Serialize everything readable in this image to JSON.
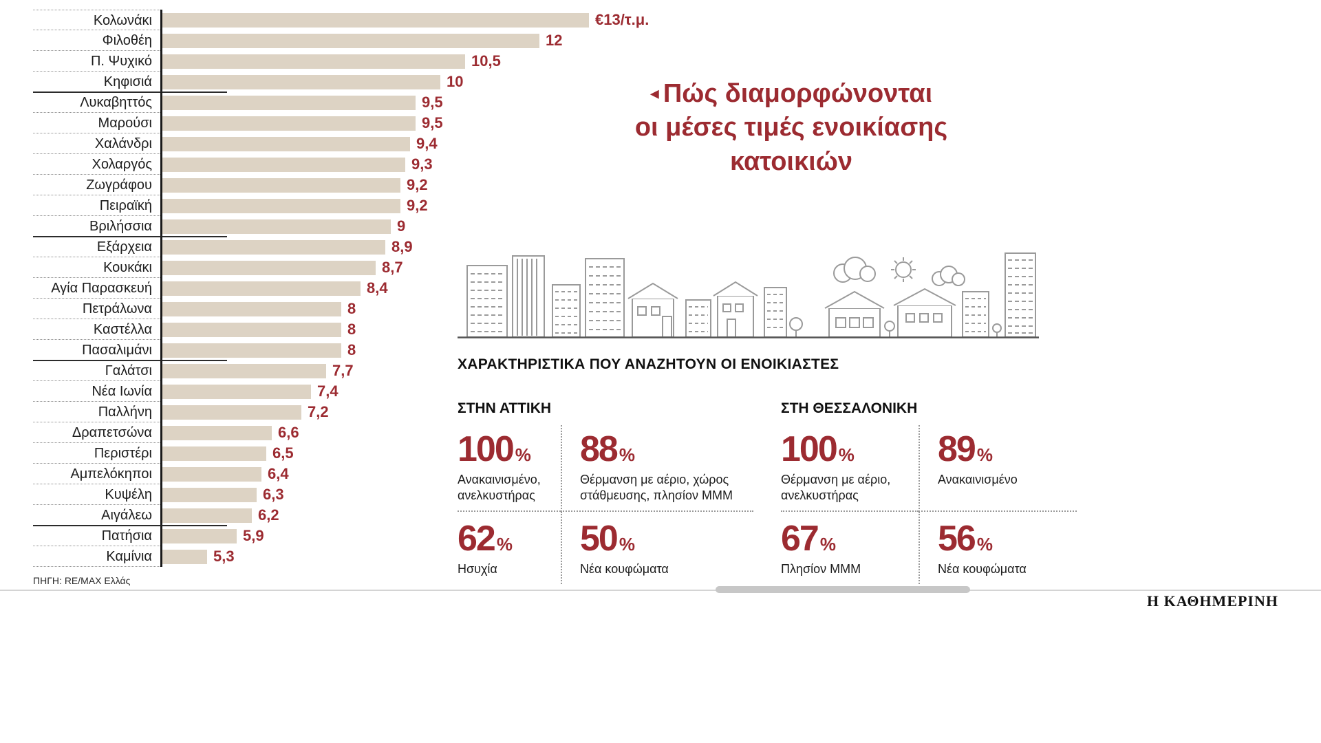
{
  "colors": {
    "accent_red": "#9c2b31",
    "bar_fill": "#ddd3c4",
    "skyline_gray": "#9a9a9a"
  },
  "title": {
    "pointer": "◂",
    "line1": "Πώς διαμορφώνονται",
    "line2": "οι μέσες τιμές ενοικίασης",
    "line3": "κατοικιών"
  },
  "chart_data": {
    "type": "bar",
    "orientation": "horizontal",
    "unit": "€/τ.μ.",
    "xlim": [
      4.4,
      13
    ],
    "categories": [
      "Κολωνάκι",
      "Φιλοθέη",
      "Π. Ψυχικό",
      "Κηφισιά",
      "Λυκαβηττός",
      "Μαρούσι",
      "Χαλάνδρι",
      "Χολαργός",
      "Ζωγράφου",
      "Πειραϊκή",
      "Βριλήσσια",
      "Εξάρχεια",
      "Κουκάκι",
      "Αγία Παρασκευή",
      "Πετράλωνα",
      "Καστέλλα",
      "Πασαλιμάνι",
      "Γαλάτσι",
      "Νέα Ιωνία",
      "Παλλήνη",
      "Δραπετσώνα",
      "Περιστέρι",
      "Αμπελόκηποι",
      "Κυψέλη",
      "Αιγάλεω",
      "Πατήσια",
      "Καμίνια"
    ],
    "values": [
      13,
      12,
      10.5,
      10,
      9.5,
      9.5,
      9.4,
      9.3,
      9.2,
      9.2,
      9,
      8.9,
      8.7,
      8.4,
      8,
      8,
      8,
      7.7,
      7.4,
      7.2,
      6.6,
      6.5,
      6.4,
      6.3,
      6.2,
      5.9,
      5.3
    ],
    "value_labels": [
      "€13/τ.μ.",
      "12",
      "10,5",
      "10",
      "9,5",
      "9,5",
      "9,4",
      "9,3",
      "9,2",
      "9,2",
      "9",
      "8,9",
      "8,7",
      "8,4",
      "8",
      "8",
      "8",
      "7,7",
      "7,4",
      "7,2",
      "6,6",
      "6,5",
      "6,4",
      "6,3",
      "6,2",
      "5,9",
      "5,3"
    ],
    "group_breaks": [
      3,
      10,
      16,
      24
    ],
    "source": "ΠΗΓΗ: RE/MAX Ελλάς"
  },
  "features": {
    "header": "ΧΑΡΑΚΤΗΡΙΣΤΙΚΑ ΠΟΥ ΑΝΑΖΗΤΟΥΝ ΟΙ ΕΝΟΙΚΙΑΣΤΕΣ",
    "regions": [
      {
        "title": "ΣΤΗΝ ΑΤΤΙΚΗ",
        "stats": [
          {
            "value": "100",
            "suffix": "%",
            "label": "Ανακαινισμένο, ανελκυστήρας"
          },
          {
            "value": "88",
            "suffix": "%",
            "label": "Θέρμανση με αέριο, χώρος στάθμευσης, πλησίον ΜΜΜ"
          },
          {
            "value": "62",
            "suffix": "%",
            "label": "Ησυχία"
          },
          {
            "value": "50",
            "suffix": "%",
            "label": "Νέα κουφώματα"
          }
        ]
      },
      {
        "title": "ΣΤΗ ΘΕΣΣΑΛΟΝΙΚΗ",
        "stats": [
          {
            "value": "100",
            "suffix": "%",
            "label": "Θέρμανση με αέριο, ανελκυστήρας"
          },
          {
            "value": "89",
            "suffix": "%",
            "label": "Ανακαινισμένο"
          },
          {
            "value": "67",
            "suffix": "%",
            "label": "Πλησίον ΜΜΜ"
          },
          {
            "value": "56",
            "suffix": "%",
            "label": "Νέα κουφώματα"
          }
        ]
      }
    ]
  },
  "branding": "Η ΚΑΘΗΜΕΡΙΝΗ"
}
